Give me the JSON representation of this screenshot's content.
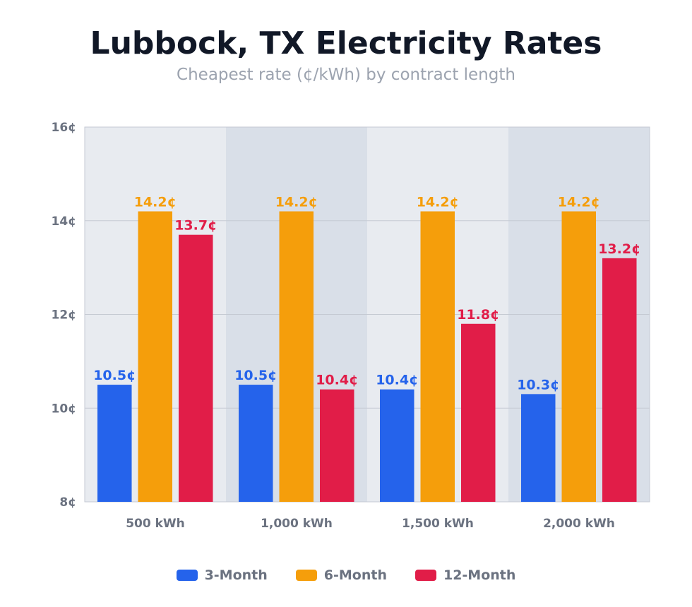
{
  "chart_data": {
    "type": "bar",
    "title": "Lubbock, TX Electricity Rates",
    "subtitle": "Cheapest rate (¢/kWh) by contract length",
    "categories": [
      "500 kWh",
      "1,000 kWh",
      "1,500 kWh",
      "2,000 kWh"
    ],
    "series": [
      {
        "name": "3-Month",
        "color": "#2563eb",
        "values": [
          10.5,
          10.5,
          10.4,
          10.3
        ]
      },
      {
        "name": "6-Month",
        "color": "#f59e0b",
        "values": [
          14.2,
          14.2,
          14.2,
          14.2
        ]
      },
      {
        "name": "12-Month",
        "color": "#e11d48",
        "values": [
          13.7,
          10.4,
          11.8,
          13.2
        ]
      }
    ],
    "ylim": [
      8,
      16
    ],
    "yticks": [
      8,
      10,
      12,
      14,
      16
    ],
    "tick_suffix": "¢",
    "grid": true,
    "legend": "bottom"
  }
}
